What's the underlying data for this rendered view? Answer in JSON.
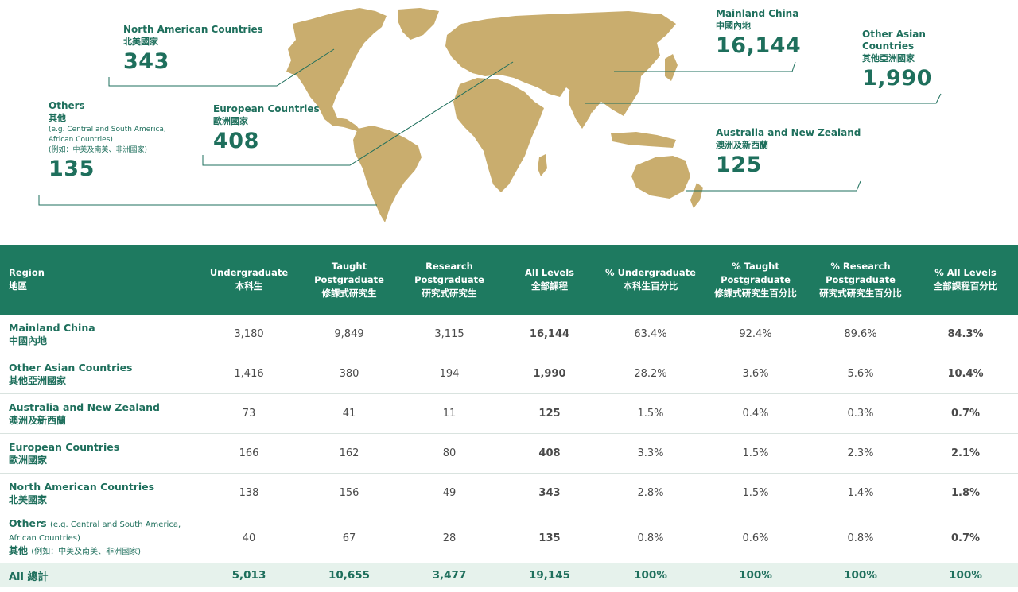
{
  "colors": {
    "accent": "#1e6f5c",
    "header_bg": "#1e7a60",
    "map_land": "#c9ad6e",
    "total_row_bg": "#e6f2ec"
  },
  "callouts": {
    "north_america": {
      "en": "North American Countries",
      "zh": "北美國家",
      "value": "343"
    },
    "europe": {
      "en": "European Countries",
      "zh": "歐洲國家",
      "value": "408"
    },
    "others": {
      "en": "Others",
      "zh": "其他",
      "note_en": "(e.g. Central and South America, African Countries)",
      "note_zh": "(例如：中美及南美、非洲國家)",
      "value": "135"
    },
    "mainland_china": {
      "en": "Mainland China",
      "zh": "中國內地",
      "value": "16,144"
    },
    "other_asian": {
      "en": "Other Asian Countries",
      "zh": "其他亞洲國家",
      "value": "1,990"
    },
    "aus_nz": {
      "en": "Australia and New Zealand",
      "zh": "澳洲及新西蘭",
      "value": "125"
    }
  },
  "table": {
    "headers": [
      {
        "en": "Region",
        "zh": "地區"
      },
      {
        "en": "Undergraduate",
        "zh": "本科生"
      },
      {
        "en": "Taught Postgraduate",
        "zh": "修課式研究生"
      },
      {
        "en": "Research Postgraduate",
        "zh": "研究式研究生"
      },
      {
        "en": "All Levels",
        "zh": "全部課程"
      },
      {
        "en": "% Undergraduate",
        "zh": "本科生百分比"
      },
      {
        "en": "% Taught Postgraduate",
        "zh": "修課式研究生百分比"
      },
      {
        "en": "% Research Postgraduate",
        "zh": "研究式研究生百分比"
      },
      {
        "en": "% All Levels",
        "zh": "全部課程百分比"
      }
    ],
    "rows": [
      {
        "en": "Mainland China",
        "zh": "中國內地",
        "ug": "3,180",
        "tpg": "9,849",
        "rpg": "3,115",
        "all": "16,144",
        "p_ug": "63.4%",
        "p_tpg": "92.4%",
        "p_rpg": "89.6%",
        "p_all": "84.3%"
      },
      {
        "en": "Other Asian Countries",
        "zh": "其他亞洲國家",
        "ug": "1,416",
        "tpg": "380",
        "rpg": "194",
        "all": "1,990",
        "p_ug": "28.2%",
        "p_tpg": "3.6%",
        "p_rpg": "5.6%",
        "p_all": "10.4%"
      },
      {
        "en": "Australia and New Zealand",
        "zh": "澳洲及新西蘭",
        "ug": "73",
        "tpg": "41",
        "rpg": "11",
        "all": "125",
        "p_ug": "1.5%",
        "p_tpg": "0.4%",
        "p_rpg": "0.3%",
        "p_all": "0.7%"
      },
      {
        "en": "European Countries",
        "zh": "歐洲國家",
        "ug": "166",
        "tpg": "162",
        "rpg": "80",
        "all": "408",
        "p_ug": "3.3%",
        "p_tpg": "1.5%",
        "p_rpg": "2.3%",
        "p_all": "2.1%"
      },
      {
        "en": "North American Countries",
        "zh": "北美國家",
        "ug": "138",
        "tpg": "156",
        "rpg": "49",
        "all": "343",
        "p_ug": "2.8%",
        "p_tpg": "1.5%",
        "p_rpg": "1.4%",
        "p_all": "1.8%"
      },
      {
        "en": "Others",
        "en_note": "(e.g. Central and South America, African Countries)",
        "zh": "其他",
        "zh_note": "(例如：中美及南美、非洲國家)",
        "ug": "40",
        "tpg": "67",
        "rpg": "28",
        "all": "135",
        "p_ug": "0.8%",
        "p_tpg": "0.6%",
        "p_rpg": "0.8%",
        "p_all": "0.7%"
      }
    ],
    "total": {
      "label": "All 總計",
      "ug": "5,013",
      "tpg": "10,655",
      "rpg": "3,477",
      "all": "19,145",
      "p_ug": "100%",
      "p_tpg": "100%",
      "p_rpg": "100%",
      "p_all": "100%"
    }
  },
  "chart_data": {
    "type": "table",
    "columns": [
      "Region 地區",
      "Undergraduate 本科生",
      "Taught Postgraduate 修課式研究生",
      "Research Postgraduate 研究式研究生",
      "All Levels 全部課程",
      "% Undergraduate 本科生百分比",
      "% Taught Postgraduate 修課式研究生百分比",
      "% Research Postgraduate 研究式研究生百分比",
      "% All Levels 全部課程百分比"
    ],
    "rows": [
      [
        "Mainland China 中國內地",
        3180,
        9849,
        3115,
        16144,
        63.4,
        92.4,
        89.6,
        84.3
      ],
      [
        "Other Asian Countries 其他亞洲國家",
        1416,
        380,
        194,
        1990,
        28.2,
        3.6,
        5.6,
        10.4
      ],
      [
        "Australia and New Zealand 澳洲及新西蘭",
        73,
        41,
        11,
        125,
        1.5,
        0.4,
        0.3,
        0.7
      ],
      [
        "European Countries 歐洲國家",
        166,
        162,
        80,
        408,
        3.3,
        1.5,
        2.3,
        2.1
      ],
      [
        "North American Countries 北美國家",
        138,
        156,
        49,
        343,
        2.8,
        1.5,
        1.4,
        1.8
      ],
      [
        "Others (e.g. Central and South America, African Countries) 其他 (例如：中美及南美、非洲國家)",
        40,
        67,
        28,
        135,
        0.8,
        0.6,
        0.8,
        0.7
      ],
      [
        "All 總計",
        5013,
        10655,
        3477,
        19145,
        100,
        100,
        100,
        100
      ]
    ]
  }
}
